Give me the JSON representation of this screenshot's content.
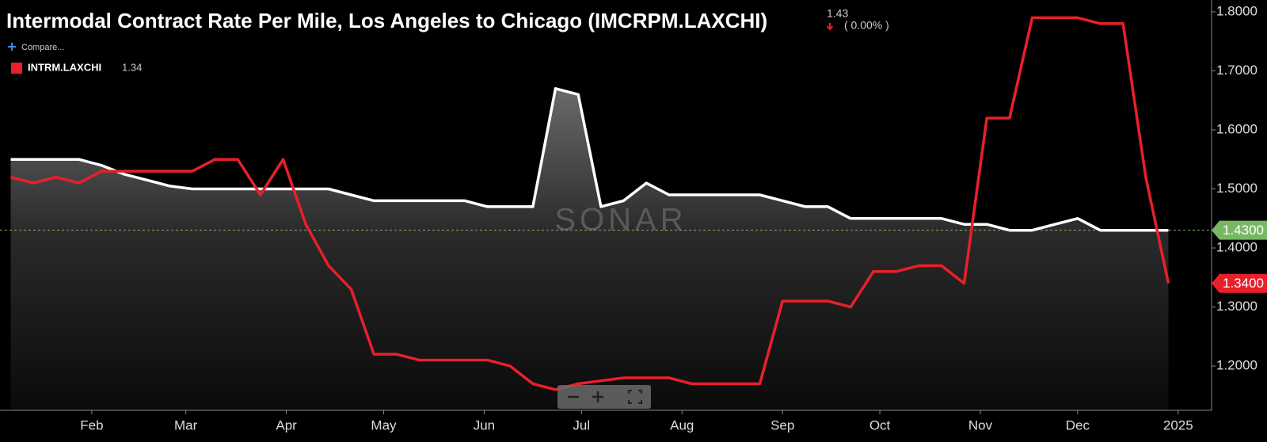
{
  "chart_data": {
    "type": "line",
    "title": "Intermodal Contract Rate Per Mile, Los Angeles to Chicago (IMCRPM.LAXCHI)",
    "header_value": 1.43,
    "header_change": "( 0.00% )",
    "compare_label": "Compare...",
    "watermark": "SONAR",
    "x": [
      6,
      13,
      20,
      27,
      34,
      41,
      48,
      55,
      62,
      69,
      76,
      83,
      90,
      97,
      104,
      111,
      118,
      125,
      132,
      139,
      146,
      153,
      160,
      167,
      174,
      181,
      188,
      195,
      202,
      209,
      216,
      223,
      230,
      237,
      244,
      251,
      258,
      265,
      272,
      279,
      286,
      293,
      300,
      307,
      314,
      321,
      328,
      335,
      342,
      349,
      356,
      363
    ],
    "xlim": [
      2.7,
      376.3
    ],
    "xticks": [
      {
        "value": 31,
        "label": "Feb"
      },
      {
        "value": 60,
        "label": "Mar"
      },
      {
        "value": 91,
        "label": "Apr"
      },
      {
        "value": 121,
        "label": "May"
      },
      {
        "value": 152,
        "label": "Jun"
      },
      {
        "value": 182,
        "label": "Jul"
      },
      {
        "value": 213,
        "label": "Aug"
      },
      {
        "value": 244,
        "label": "Sep"
      },
      {
        "value": 274,
        "label": "Oct"
      },
      {
        "value": 305,
        "label": "Nov"
      },
      {
        "value": 335,
        "label": "Dec"
      },
      {
        "value": 366,
        "label": "2025"
      }
    ],
    "ylim": [
      1.125,
      1.82
    ],
    "yticks": [
      {
        "value": 1.2,
        "label": "1.2000"
      },
      {
        "value": 1.3,
        "label": "1.3000"
      },
      {
        "value": 1.4,
        "label": "1.4000"
      },
      {
        "value": 1.5,
        "label": "1.5000"
      },
      {
        "value": 1.6,
        "label": "1.6000"
      },
      {
        "value": 1.7,
        "label": "1.7000"
      },
      {
        "value": 1.8,
        "label": "1.8000"
      }
    ],
    "series": [
      {
        "color": "#ffffff",
        "fill": true,
        "values": [
          1.55,
          1.55,
          1.55,
          1.55,
          1.54,
          1.525,
          1.515,
          1.505,
          1.5,
          1.5,
          1.5,
          1.5,
          1.5,
          1.5,
          1.5,
          1.49,
          1.48,
          1.48,
          1.48,
          1.48,
          1.48,
          1.47,
          1.47,
          1.47,
          1.67,
          1.66,
          1.47,
          1.48,
          1.51,
          1.49,
          1.49,
          1.49,
          1.49,
          1.49,
          1.48,
          1.47,
          1.47,
          1.45,
          1.45,
          1.45,
          1.45,
          1.45,
          1.44,
          1.44,
          1.43,
          1.43,
          1.44,
          1.45,
          1.43,
          1.43,
          1.43,
          1.43
        ],
        "end_label": {
          "value": 1.43,
          "label": "1.4300"
        },
        "end_color": "#78b865"
      },
      {
        "name": "INTRM.LAXCHI",
        "color": "#e8202a",
        "legend_value": 1.34,
        "values": [
          1.52,
          1.51,
          1.52,
          1.51,
          1.53,
          1.53,
          1.53,
          1.53,
          1.53,
          1.55,
          1.55,
          1.49,
          1.55,
          1.44,
          1.37,
          1.33,
          1.22,
          1.22,
          1.21,
          1.21,
          1.21,
          1.21,
          1.2,
          1.17,
          1.16,
          1.17,
          1.175,
          1.18,
          1.18,
          1.18,
          1.17,
          1.17,
          1.17,
          1.17,
          1.31,
          1.31,
          1.31,
          1.3,
          1.36,
          1.36,
          1.37,
          1.37,
          1.34,
          1.62,
          1.62,
          1.79,
          1.79,
          1.79,
          1.78,
          1.78,
          1.52,
          1.34
        ],
        "end_label": {
          "value": 1.34,
          "label": "1.3400"
        },
        "end_color": "#e8202a"
      }
    ]
  }
}
